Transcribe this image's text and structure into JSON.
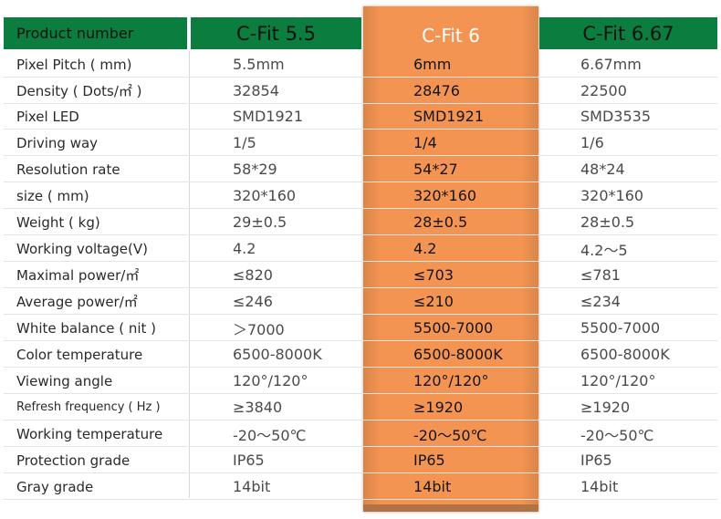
{
  "header": {
    "label": "Product number",
    "col1": "C-Fit 5.5",
    "col2": "C-Fit 6",
    "col3": "C-Fit 6.67"
  },
  "rows": [
    {
      "label": "Pixel Pitch ( mm)",
      "v1": "5.5mm",
      "v2": "6mm",
      "v3": "6.67mm"
    },
    {
      "label": "Density ( Dots/㎡ )",
      "v1": "32854",
      "v2": "28476",
      "v3": "22500"
    },
    {
      "label": "Pixel LED",
      "v1": "SMD1921",
      "v2": "SMD1921",
      "v3": "SMD3535"
    },
    {
      "label": "Driving way",
      "v1": "1/5",
      "v2": "1/4",
      "v3": "1/6"
    },
    {
      "label": "Resolution rate",
      "v1": "58*29",
      "v2": "54*27",
      "v3": "48*24"
    },
    {
      "label": "size ( mm)",
      "v1": "320*160",
      "v2": "320*160",
      "v3": "320*160"
    },
    {
      "label": "Weight ( kg)",
      "v1": "29±0.5",
      "v2": "28±0.5",
      "v3": "28±0.5"
    },
    {
      "label": "Working voltage(V)",
      "v1": "4.2",
      "v2": "4.2",
      "v3": "4.2～5"
    },
    {
      "label": "Maximal power/㎡",
      "v1": "≤820",
      "v2": "≤703",
      "v3": "≤781"
    },
    {
      "label": "Average power/㎡",
      "v1": "≤246",
      "v2": "≤210",
      "v3": "≤234"
    },
    {
      "label": "White balance ( nit )",
      "v1": "＞7000",
      "v2": "5500-7000",
      "v3": "5500-7000"
    },
    {
      "label": "Color temperature",
      "v1": "6500-8000K",
      "v2": "6500-8000K",
      "v3": "6500-8000K"
    },
    {
      "label": "Viewing angle",
      "v1": "120°/120°",
      "v2": "120°/120°",
      "v3": "120°/120°"
    },
    {
      "label": "Refresh frequency ( Hz )",
      "v1": "≥3840",
      "v2": "≥1920",
      "v3": "≥1920"
    },
    {
      "label": "Working temperature",
      "v1": "-20～50℃",
      "v2": "-20～50℃",
      "v3": "-20～50℃"
    },
    {
      "label": "Protection grade",
      "v1": "IP65",
      "v2": "IP65",
      "v3": "IP65"
    },
    {
      "label": "Gray grade",
      "v1": "14bit",
      "v2": "14bit",
      "v3": "14bit"
    }
  ],
  "colors": {
    "header_green": "#0b7e3f",
    "highlight_orange": "#f49453"
  }
}
